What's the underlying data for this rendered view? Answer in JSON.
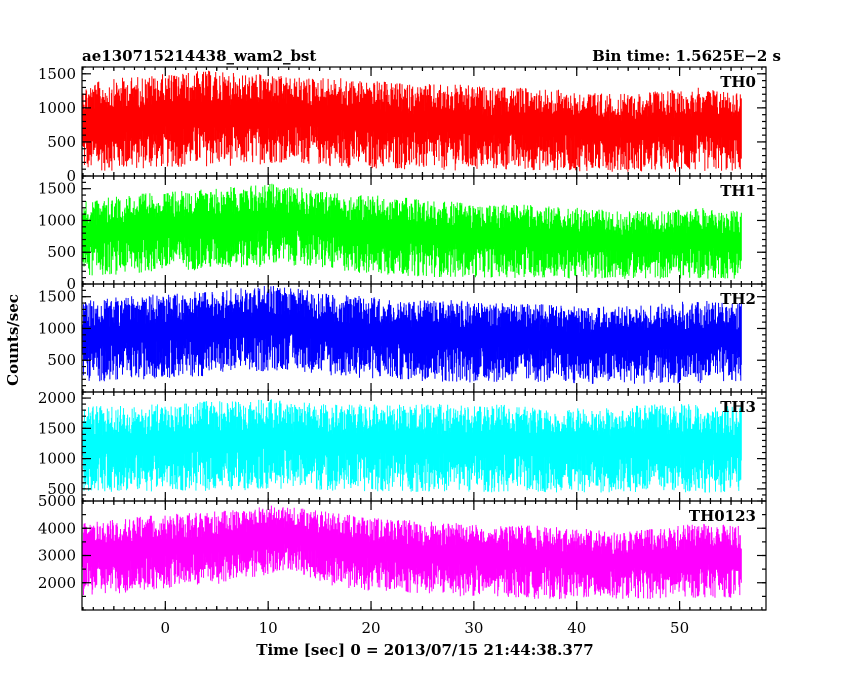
{
  "header": {
    "title": "ae130715214438_wam2_bst",
    "bin_time": "Bin time: 1.5625E−2 s"
  },
  "chart_data": {
    "type": "line",
    "xlabel": "Time [sec] 0 = 2013/07/15 21:44:38.377",
    "ylabel": "Counts/sec",
    "xlim": [
      -8.1,
      58.4
    ],
    "x_range": [
      -8.0,
      56.0
    ],
    "x_ticks": [
      0,
      10,
      20,
      30,
      40,
      50
    ],
    "x_tick_labels": [
      "0",
      "10",
      "20",
      "30",
      "40",
      "50"
    ],
    "panels": [
      {
        "label": "TH0",
        "color": "#ff0000",
        "ylim": [
          0,
          1600
        ],
        "y_ticks": [
          0,
          500,
          1000,
          1500
        ],
        "y_tick_labels": [
          "0",
          "500",
          "1000",
          "1500"
        ],
        "envelope": {
          "x": [
            -8,
            -4,
            0,
            4,
            8,
            10,
            12,
            16,
            20,
            24,
            28,
            32,
            36,
            40,
            44,
            48,
            52,
            56
          ],
          "lower": [
            60,
            80,
            120,
            140,
            150,
            180,
            200,
            140,
            100,
            90,
            80,
            80,
            80,
            70,
            60,
            60,
            60,
            60
          ],
          "upper": [
            1350,
            1450,
            1500,
            1550,
            1500,
            1500,
            1450,
            1450,
            1400,
            1350,
            1350,
            1300,
            1300,
            1250,
            1200,
            1250,
            1300,
            1250
          ]
        }
      },
      {
        "label": "TH1",
        "color": "#00ff00",
        "ylim": [
          0,
          1700
        ],
        "y_ticks": [
          0,
          500,
          1000,
          1500
        ],
        "y_tick_labels": [
          "0",
          "500",
          "1000",
          "1500"
        ],
        "envelope": {
          "x": [
            -8,
            -4,
            0,
            4,
            8,
            10,
            12,
            16,
            20,
            24,
            28,
            32,
            36,
            40,
            44,
            48,
            52,
            56
          ],
          "lower": [
            120,
            150,
            200,
            220,
            250,
            280,
            300,
            220,
            150,
            120,
            100,
            100,
            90,
            80,
            80,
            80,
            80,
            80
          ],
          "upper": [
            1300,
            1400,
            1450,
            1500,
            1550,
            1600,
            1550,
            1450,
            1400,
            1350,
            1300,
            1250,
            1250,
            1200,
            1150,
            1150,
            1200,
            1150
          ]
        }
      },
      {
        "label": "TH2",
        "color": "#0000ff",
        "ylim": [
          0,
          1700
        ],
        "y_ticks": [
          500,
          1000,
          1500
        ],
        "y_tick_labels": [
          "500",
          "1000",
          "1500"
        ],
        "envelope": {
          "x": [
            -8,
            -4,
            0,
            4,
            8,
            10,
            12,
            16,
            20,
            24,
            28,
            32,
            36,
            40,
            44,
            48,
            52,
            56
          ],
          "lower": [
            150,
            180,
            220,
            250,
            300,
            320,
            350,
            250,
            200,
            180,
            150,
            150,
            150,
            130,
            120,
            130,
            140,
            140
          ],
          "upper": [
            1450,
            1500,
            1550,
            1600,
            1650,
            1680,
            1650,
            1550,
            1500,
            1450,
            1450,
            1400,
            1400,
            1350,
            1350,
            1400,
            1450,
            1400
          ]
        }
      },
      {
        "label": "TH3",
        "color": "#00ffff",
        "ylim": [
          300,
          2100
        ],
        "y_ticks": [
          500,
          1000,
          1500,
          2000
        ],
        "y_tick_labels": [
          "500",
          "1000",
          "1500",
          "2000"
        ],
        "envelope": {
          "x": [
            -8,
            -4,
            0,
            4,
            8,
            10,
            12,
            16,
            20,
            24,
            28,
            32,
            36,
            40,
            44,
            48,
            52,
            56
          ],
          "lower": [
            450,
            450,
            460,
            460,
            480,
            500,
            500,
            470,
            450,
            450,
            450,
            440,
            440,
            440,
            430,
            440,
            440,
            440
          ],
          "upper": [
            1850,
            1900,
            1900,
            1950,
            1950,
            2000,
            1950,
            1900,
            1900,
            1900,
            1900,
            1900,
            1850,
            1850,
            1850,
            1900,
            1900,
            1850
          ]
        }
      },
      {
        "label": "TH0123",
        "color": "#ff00ff",
        "ylim": [
          1000,
          5000
        ],
        "y_ticks": [
          2000,
          3000,
          4000,
          5000
        ],
        "y_tick_labels": [
          "2000",
          "3000",
          "4000",
          "5000"
        ],
        "envelope": {
          "x": [
            -8,
            -4,
            0,
            4,
            8,
            10,
            12,
            16,
            20,
            24,
            28,
            32,
            36,
            40,
            44,
            48,
            52,
            56
          ],
          "lower": [
            1500,
            1600,
            1800,
            1900,
            2100,
            2300,
            2500,
            1900,
            1700,
            1600,
            1500,
            1500,
            1400,
            1400,
            1400,
            1400,
            1450,
            1450
          ],
          "upper": [
            4200,
            4400,
            4500,
            4600,
            4700,
            4900,
            4800,
            4600,
            4400,
            4300,
            4200,
            4100,
            4100,
            4000,
            3900,
            4000,
            4200,
            4100
          ]
        }
      }
    ]
  }
}
